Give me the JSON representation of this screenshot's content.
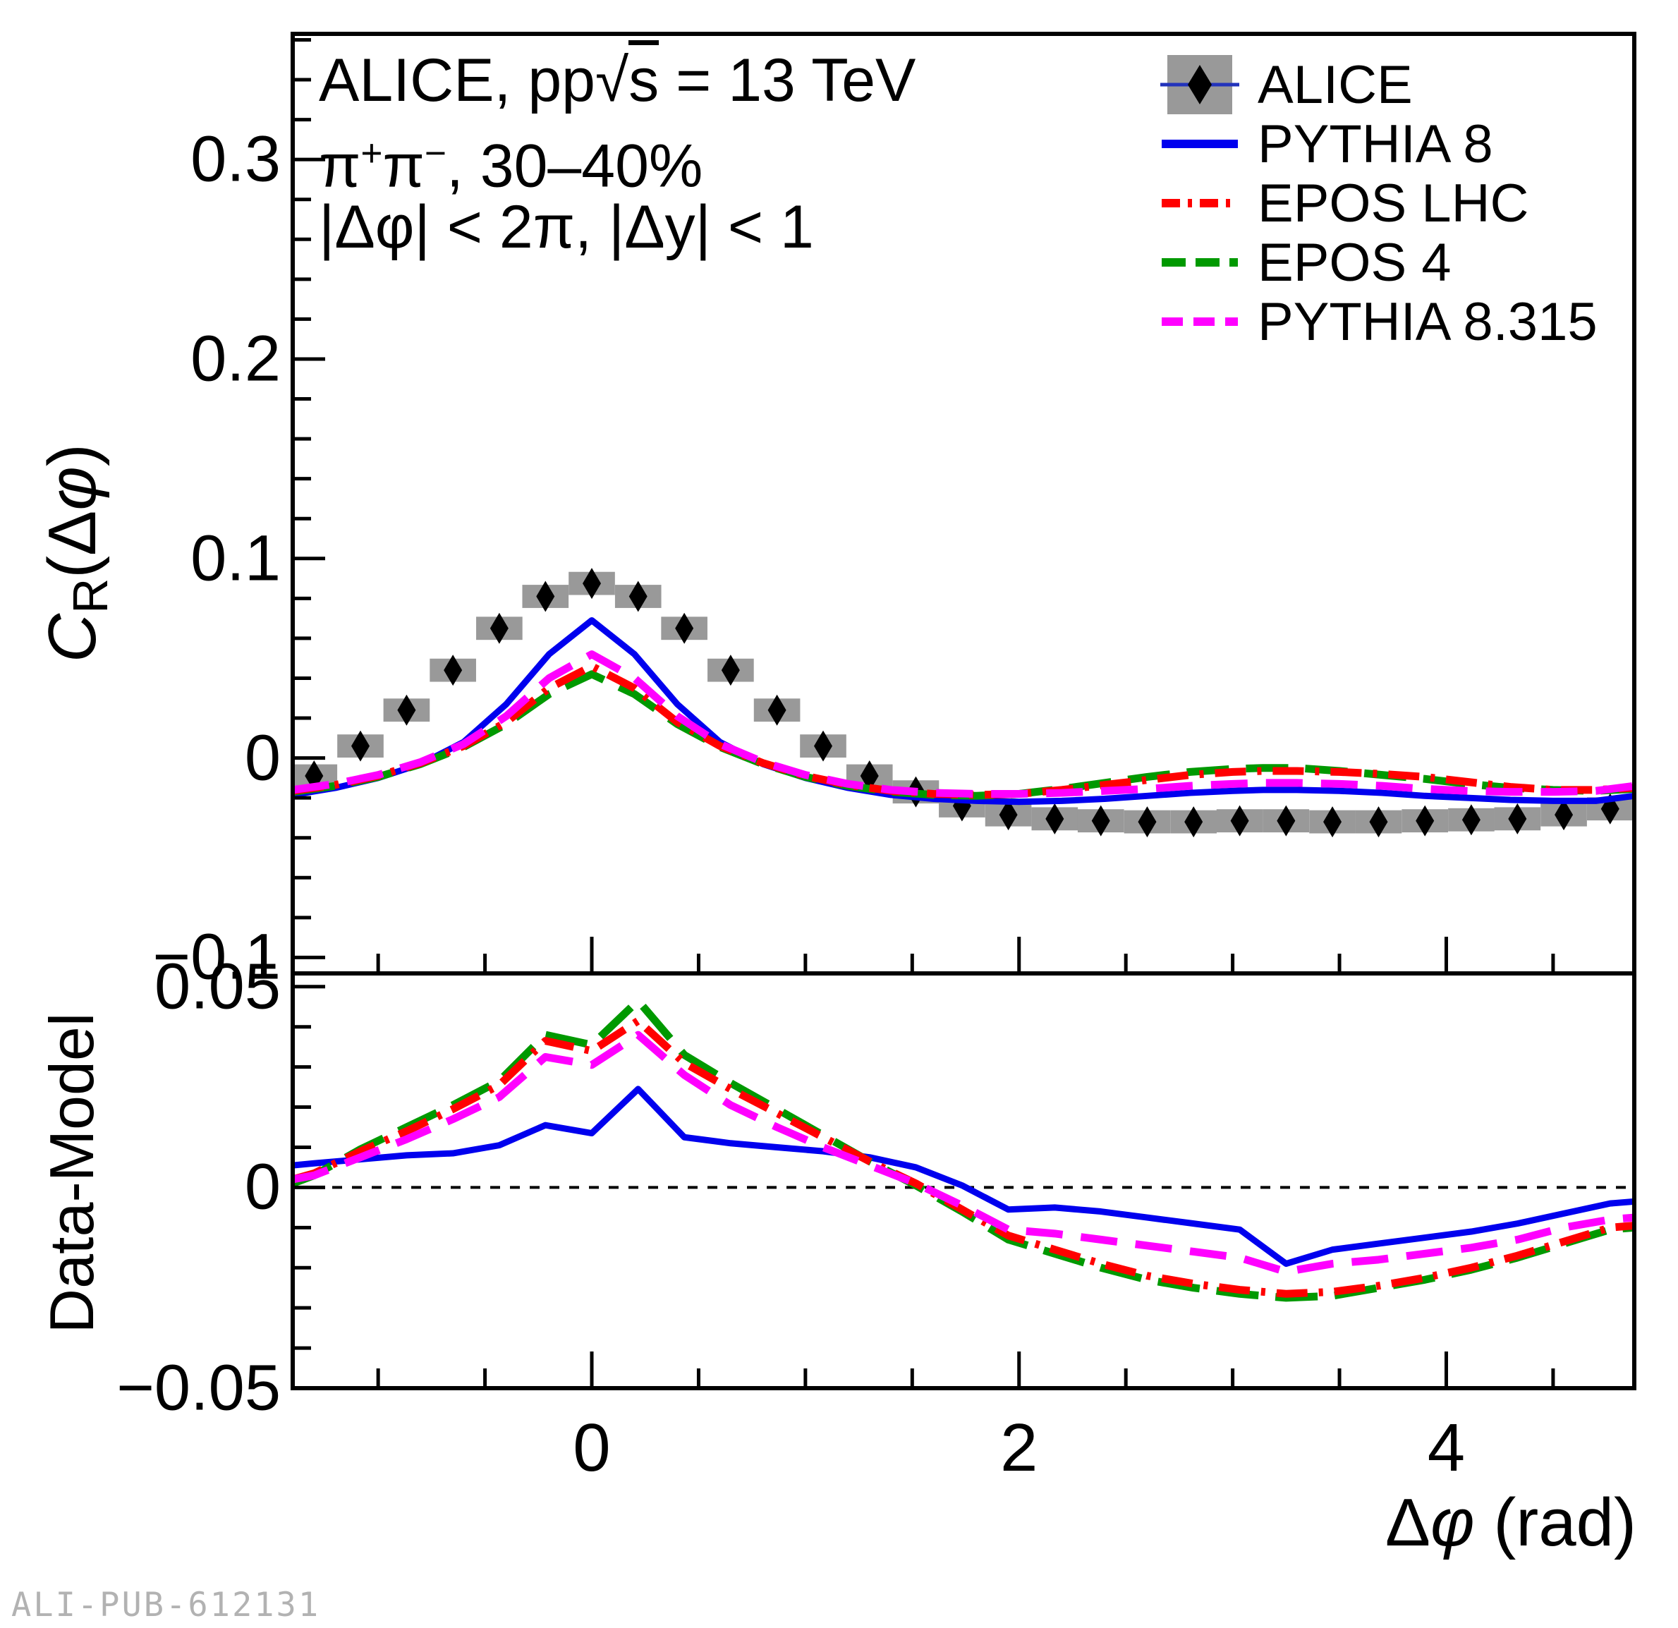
{
  "colors": {
    "frame": "#000000",
    "alice_marker": "#000000",
    "alice_sys_box": "#999999",
    "alice_stat_line": "#2233bb",
    "pythia8": "#0000ee",
    "epos_lhc": "#ff0000",
    "epos4": "#009900",
    "pythia8315": "#ff00ff",
    "zero_line": "#000000",
    "watermark": "#b2b2b2"
  },
  "annotations": {
    "line1_prefix": "ALICE, pp",
    "line1_sqrt_arg": "s",
    "line1_suffix": " = 13 TeV",
    "line2_pi1": "π",
    "line2_sup1": "+",
    "line2_pi2": "π",
    "line2_sup2": "−",
    "line2_rest": ", 30–40%",
    "line3": "|Δφ| < 2π, |Δy| < 1"
  },
  "axis_titles": {
    "top_c": "C",
    "top_sub": "R",
    "top_p1": "(Δ",
    "top_phi": "φ",
    "top_p2": ")",
    "bottom": "Data-Model",
    "x_p1": "Δ",
    "x_phi": "φ",
    "x_p2": " (rad)"
  },
  "footer": {
    "watermark": "ALI-PUB-612131"
  },
  "legend": {
    "entries": [
      {
        "label": "ALICE",
        "type": "data",
        "marker_color": "#000000",
        "box_color": "#999999",
        "line_color": "#2233bb"
      },
      {
        "label": "PYTHIA 8",
        "type": "line",
        "color": "#0000ee",
        "dash": "solid"
      },
      {
        "label": "EPOS LHC",
        "type": "line",
        "color": "#ff0000",
        "dash": "dashdot"
      },
      {
        "label": "EPOS 4",
        "type": "line",
        "color": "#009900",
        "dash": "dash"
      },
      {
        "label": "PYTHIA 8.315",
        "type": "line",
        "color": "#ff00ff",
        "dash": "longdash"
      }
    ]
  },
  "chart_data": [
    {
      "panel": "top",
      "type": "line",
      "title": "ALICE, pp sqrt(s) = 13 TeV, pi+pi-, 30-40%, |dphi|<2pi, |dy|<1",
      "xlabel": "Δφ (rad)",
      "ylabel": "C_R(Δφ)",
      "xlim": [
        -1.4,
        4.88
      ],
      "ylim": [
        -0.108,
        0.363
      ],
      "grid": false,
      "legend_position": "top-right",
      "yticks": [
        {
          "v": -0.1,
          "label": "−0.1"
        },
        {
          "v": 0,
          "label": "0"
        },
        {
          "v": 0.1,
          "label": "0.1"
        },
        {
          "v": 0.2,
          "label": "0.2"
        },
        {
          "v": 0.3,
          "label": "0.3"
        }
      ],
      "yminor_step": 0.02,
      "xticks": [
        {
          "v": 0,
          "label": "0"
        },
        {
          "v": 2,
          "label": "2"
        },
        {
          "v": 4,
          "label": "4"
        }
      ],
      "xminor_step": 0.5,
      "show_x_labels": false,
      "alice_data": {
        "name": "ALICE",
        "marker": "diamond",
        "bin_width": 0.2167,
        "sys_err": 0.0058,
        "x": [
          -1.517,
          -1.3,
          -1.083,
          -0.867,
          -0.65,
          -0.433,
          -0.217,
          0.0,
          0.217,
          0.433,
          0.65,
          0.867,
          1.083,
          1.3,
          1.517,
          1.733,
          1.95,
          2.167,
          2.383,
          2.6,
          2.817,
          3.033,
          3.25,
          3.467,
          3.683,
          3.9,
          4.117,
          4.333,
          4.55,
          4.767,
          4.983
        ],
        "y": [
          -0.017,
          -0.009,
          0.006,
          0.024,
          0.044,
          0.065,
          0.081,
          0.0875,
          0.081,
          0.065,
          0.044,
          0.024,
          0.006,
          -0.009,
          -0.017,
          -0.024,
          -0.0285,
          -0.0305,
          -0.0315,
          -0.032,
          -0.032,
          -0.0315,
          -0.0315,
          -0.032,
          -0.032,
          -0.0315,
          -0.031,
          -0.0305,
          -0.0285,
          -0.0255,
          -0.022
        ]
      },
      "series": [
        {
          "name": "PYTHIA 8",
          "dash": "solid",
          "color": "#0000ee",
          "width": 9,
          "x": [
            -1.4,
            -1.2,
            -1.0,
            -0.8,
            -0.6,
            -0.4,
            -0.2,
            0,
            0.2,
            0.4,
            0.6,
            0.8,
            1.0,
            1.2,
            1.4,
            1.6,
            1.8,
            2.0,
            2.2,
            2.4,
            2.6,
            2.8,
            3.0,
            3.142,
            3.3,
            3.5,
            3.7,
            3.9,
            4.1,
            4.3,
            4.5,
            4.7,
            4.88
          ],
          "y": [
            -0.0185,
            -0.015,
            -0.01,
            -0.003,
            0.008,
            0.027,
            0.052,
            0.069,
            0.052,
            0.027,
            0.008,
            -0.003,
            -0.01,
            -0.015,
            -0.0185,
            -0.0205,
            -0.0215,
            -0.022,
            -0.0215,
            -0.0205,
            -0.019,
            -0.0175,
            -0.0165,
            -0.016,
            -0.016,
            -0.0165,
            -0.0175,
            -0.019,
            -0.02,
            -0.021,
            -0.0215,
            -0.0215,
            -0.019
          ]
        },
        {
          "name": "EPOS 4",
          "dash": "dash",
          "color": "#009900",
          "width": 11,
          "x": [
            -1.4,
            -1.2,
            -1.0,
            -0.8,
            -0.6,
            -0.4,
            -0.2,
            0,
            0.2,
            0.4,
            0.6,
            0.8,
            1.0,
            1.2,
            1.4,
            1.6,
            1.8,
            2.0,
            2.2,
            2.4,
            2.6,
            2.8,
            3.0,
            3.142,
            3.3,
            3.5,
            3.7,
            3.9,
            4.1,
            4.3,
            4.5,
            4.7,
            4.88
          ],
          "y": [
            -0.017,
            -0.014,
            -0.0095,
            -0.003,
            0.0055,
            0.017,
            0.032,
            0.042,
            0.032,
            0.017,
            0.0055,
            -0.003,
            -0.0095,
            -0.014,
            -0.017,
            -0.0185,
            -0.019,
            -0.018,
            -0.0155,
            -0.0125,
            -0.0095,
            -0.007,
            -0.0055,
            -0.005,
            -0.005,
            -0.0065,
            -0.0085,
            -0.0105,
            -0.013,
            -0.015,
            -0.016,
            -0.0165,
            -0.0155
          ]
        },
        {
          "name": "EPOS LHC",
          "dash": "dashdot",
          "color": "#ff0000",
          "width": 11,
          "x": [
            -1.4,
            -1.2,
            -1.0,
            -0.8,
            -0.6,
            -0.4,
            -0.2,
            0,
            0.2,
            0.4,
            0.6,
            0.8,
            1.0,
            1.2,
            1.4,
            1.6,
            1.8,
            2.0,
            2.2,
            2.4,
            2.6,
            2.8,
            3.0,
            3.142,
            3.3,
            3.5,
            3.7,
            3.9,
            4.1,
            4.3,
            4.5,
            4.7,
            4.88
          ],
          "y": [
            -0.0165,
            -0.0135,
            -0.009,
            -0.0025,
            0.006,
            0.018,
            0.035,
            0.046,
            0.035,
            0.018,
            0.006,
            -0.0025,
            -0.009,
            -0.0135,
            -0.0165,
            -0.018,
            -0.0185,
            -0.018,
            -0.016,
            -0.0135,
            -0.011,
            -0.0085,
            -0.007,
            -0.0065,
            -0.0065,
            -0.007,
            -0.008,
            -0.0095,
            -0.012,
            -0.0145,
            -0.016,
            -0.016,
            -0.015
          ]
        },
        {
          "name": "PYTHIA 8.315",
          "dash": "longdash",
          "color": "#ff00ff",
          "width": 11,
          "x": [
            -1.4,
            -1.2,
            -1.0,
            -0.8,
            -0.6,
            -0.4,
            -0.2,
            0,
            0.2,
            0.4,
            0.6,
            0.8,
            1.0,
            1.2,
            1.4,
            1.6,
            1.8,
            2.0,
            2.2,
            2.4,
            2.6,
            2.8,
            3.0,
            3.142,
            3.3,
            3.5,
            3.7,
            3.9,
            4.1,
            4.3,
            4.5,
            4.7,
            4.88
          ],
          "y": [
            -0.016,
            -0.013,
            -0.0085,
            -0.002,
            0.007,
            0.021,
            0.04,
            0.052,
            0.04,
            0.021,
            0.007,
            -0.002,
            -0.0085,
            -0.013,
            -0.016,
            -0.0175,
            -0.018,
            -0.018,
            -0.0175,
            -0.0165,
            -0.0155,
            -0.014,
            -0.013,
            -0.0125,
            -0.0125,
            -0.013,
            -0.014,
            -0.0155,
            -0.0165,
            -0.017,
            -0.017,
            -0.0165,
            -0.014
          ]
        }
      ]
    },
    {
      "panel": "bottom",
      "type": "line",
      "title": "Data-Model",
      "xlabel": "Δφ (rad)",
      "ylabel": "Data-Model",
      "xlim": [
        -1.4,
        4.88
      ],
      "ylim": [
        -0.05,
        0.0533
      ],
      "grid": false,
      "zero_line": {
        "y": 0,
        "dash": "14 14",
        "width": 4
      },
      "yticks": [
        {
          "v": -0.05,
          "label": "−0.05"
        },
        {
          "v": 0,
          "label": "0"
        },
        {
          "v": 0.05,
          "label": "0.05"
        }
      ],
      "yminor_step": 0.01,
      "xticks": [
        {
          "v": 0,
          "label": "0"
        },
        {
          "v": 2,
          "label": "2"
        },
        {
          "v": 4,
          "label": "4"
        }
      ],
      "xminor_step": 0.5,
      "show_x_labels": true,
      "series": [
        {
          "name": "PYTHIA 8",
          "dash": "solid",
          "color": "#0000ee",
          "width": 9,
          "x": [
            -1.4,
            -1.3,
            -1.083,
            -0.867,
            -0.65,
            -0.433,
            -0.217,
            0,
            0.217,
            0.433,
            0.65,
            0.867,
            1.083,
            1.3,
            1.517,
            1.733,
            1.95,
            2.167,
            2.383,
            2.6,
            2.817,
            3.033,
            3.25,
            3.467,
            3.683,
            3.9,
            4.117,
            4.333,
            4.55,
            4.767,
            4.88
          ],
          "y": [
            0.0055,
            0.006,
            0.007,
            0.008,
            0.0085,
            0.0105,
            0.0155,
            0.0135,
            0.0245,
            0.0125,
            0.011,
            0.01,
            0.009,
            0.0075,
            0.005,
            0.0005,
            -0.0055,
            -0.005,
            -0.006,
            -0.0075,
            -0.009,
            -0.0105,
            -0.019,
            -0.0155,
            -0.014,
            -0.0125,
            -0.011,
            -0.009,
            -0.0065,
            -0.004,
            -0.0035
          ]
        },
        {
          "name": "EPOS 4",
          "dash": "dash",
          "color": "#009900",
          "width": 11,
          "x": [
            -1.4,
            -1.3,
            -1.083,
            -0.867,
            -0.65,
            -0.433,
            -0.217,
            0,
            0.217,
            0.433,
            0.65,
            0.867,
            1.083,
            1.3,
            1.517,
            1.733,
            1.95,
            2.167,
            2.383,
            2.6,
            2.817,
            3.033,
            3.25,
            3.467,
            3.683,
            3.9,
            4.117,
            4.333,
            4.55,
            4.767,
            4.88
          ],
          "y": [
            0.001,
            0.003,
            0.0095,
            0.015,
            0.0205,
            0.0265,
            0.038,
            0.0355,
            0.0465,
            0.033,
            0.026,
            0.0195,
            0.013,
            0.0065,
            0.0005,
            -0.006,
            -0.013,
            -0.0165,
            -0.02,
            -0.023,
            -0.025,
            -0.0265,
            -0.0275,
            -0.027,
            -0.025,
            -0.023,
            -0.0205,
            -0.0175,
            -0.014,
            -0.0105,
            -0.01
          ]
        },
        {
          "name": "EPOS LHC",
          "dash": "dashdot",
          "color": "#ff0000",
          "width": 11,
          "x": [
            -1.4,
            -1.3,
            -1.083,
            -0.867,
            -0.65,
            -0.433,
            -0.217,
            0,
            0.217,
            0.433,
            0.65,
            0.867,
            1.083,
            1.3,
            1.517,
            1.733,
            1.95,
            2.167,
            2.383,
            2.6,
            2.817,
            3.033,
            3.25,
            3.467,
            3.683,
            3.9,
            4.117,
            4.333,
            4.55,
            4.767,
            4.88
          ],
          "y": [
            0.002,
            0.0035,
            0.009,
            0.014,
            0.0195,
            0.0255,
            0.0365,
            0.034,
            0.0415,
            0.031,
            0.0245,
            0.0185,
            0.0125,
            0.0065,
            0.001,
            -0.0055,
            -0.012,
            -0.0155,
            -0.019,
            -0.022,
            -0.024,
            -0.0255,
            -0.0265,
            -0.026,
            -0.0245,
            -0.0225,
            -0.02,
            -0.017,
            -0.0135,
            -0.01,
            -0.0095
          ]
        },
        {
          "name": "PYTHIA 8.315",
          "dash": "longdash",
          "color": "#ff00ff",
          "width": 11,
          "x": [
            -1.4,
            -1.3,
            -1.083,
            -0.867,
            -0.65,
            -0.433,
            -0.217,
            0,
            0.217,
            0.433,
            0.65,
            0.867,
            1.083,
            1.3,
            1.517,
            1.733,
            1.95,
            2.167,
            2.383,
            2.6,
            2.817,
            3.033,
            3.25,
            3.467,
            3.683,
            3.9,
            4.117,
            4.333,
            4.55,
            4.767,
            4.88
          ],
          "y": [
            0.002,
            0.003,
            0.0075,
            0.012,
            0.017,
            0.0225,
            0.0325,
            0.0305,
            0.038,
            0.028,
            0.0205,
            0.015,
            0.01,
            0.0055,
            0.001,
            -0.0045,
            -0.0105,
            -0.0115,
            -0.013,
            -0.0145,
            -0.016,
            -0.0175,
            -0.021,
            -0.019,
            -0.018,
            -0.0165,
            -0.015,
            -0.013,
            -0.01,
            -0.008,
            -0.0075
          ]
        }
      ]
    }
  ]
}
